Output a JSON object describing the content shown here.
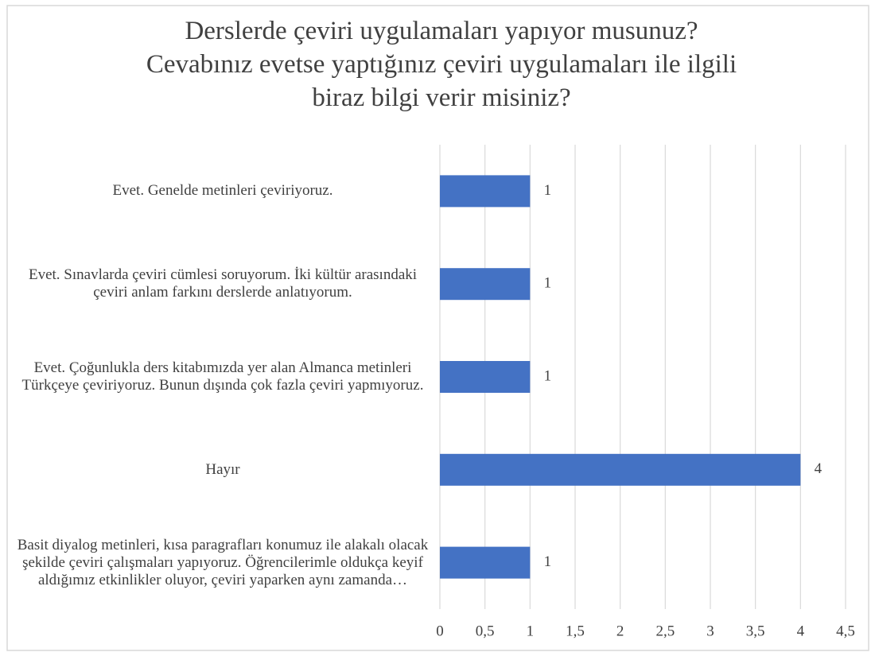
{
  "chart_data": {
    "type": "barh",
    "title": "Derslerde çeviri uygulamaları yapıyor musunuz?\nCevabınız evetse yaptığınız çeviri uygulamaları ile ilgili\nbiraz bilgi verir misiniz?",
    "categories": [
      "Evet. Genelde metinleri çeviriyoruz.",
      "Evet. Sınavlarda çeviri cümlesi soruyorum. İki kültür arasındaki çeviri anlam farkını derslerde anlatıyorum.",
      "Evet. Çoğunlukla ders kitabımızda yer alan Almanca metinleri Türkçeye çeviriyoruz. Bunun dışında çok fazla çeviri yapmıyoruz.",
      "Hayır",
      "Basit diyalog metinleri, kısa paragrafları konumuz ile alakalı olacak şekilde çeviri çalışmaları yapıyoruz. Öğrencilerimle oldukça keyif aldığımız etkinlikler oluyor, çeviri yaparken aynı zamanda…"
    ],
    "values": [
      1,
      1,
      1,
      4,
      1
    ],
    "color": "#4472c4",
    "xlim": [
      0,
      4.5
    ],
    "xticks": [
      0,
      {
        "value": 0.5,
        "label": "0,5"
      },
      1,
      {
        "value": 1.5,
        "label": "1,5"
      },
      2,
      {
        "value": 2.5,
        "label": "2,5"
      },
      3,
      {
        "value": 3.5,
        "label": "3,5"
      },
      4,
      {
        "value": 4.5,
        "label": "4,5"
      }
    ],
    "grid": true
  }
}
